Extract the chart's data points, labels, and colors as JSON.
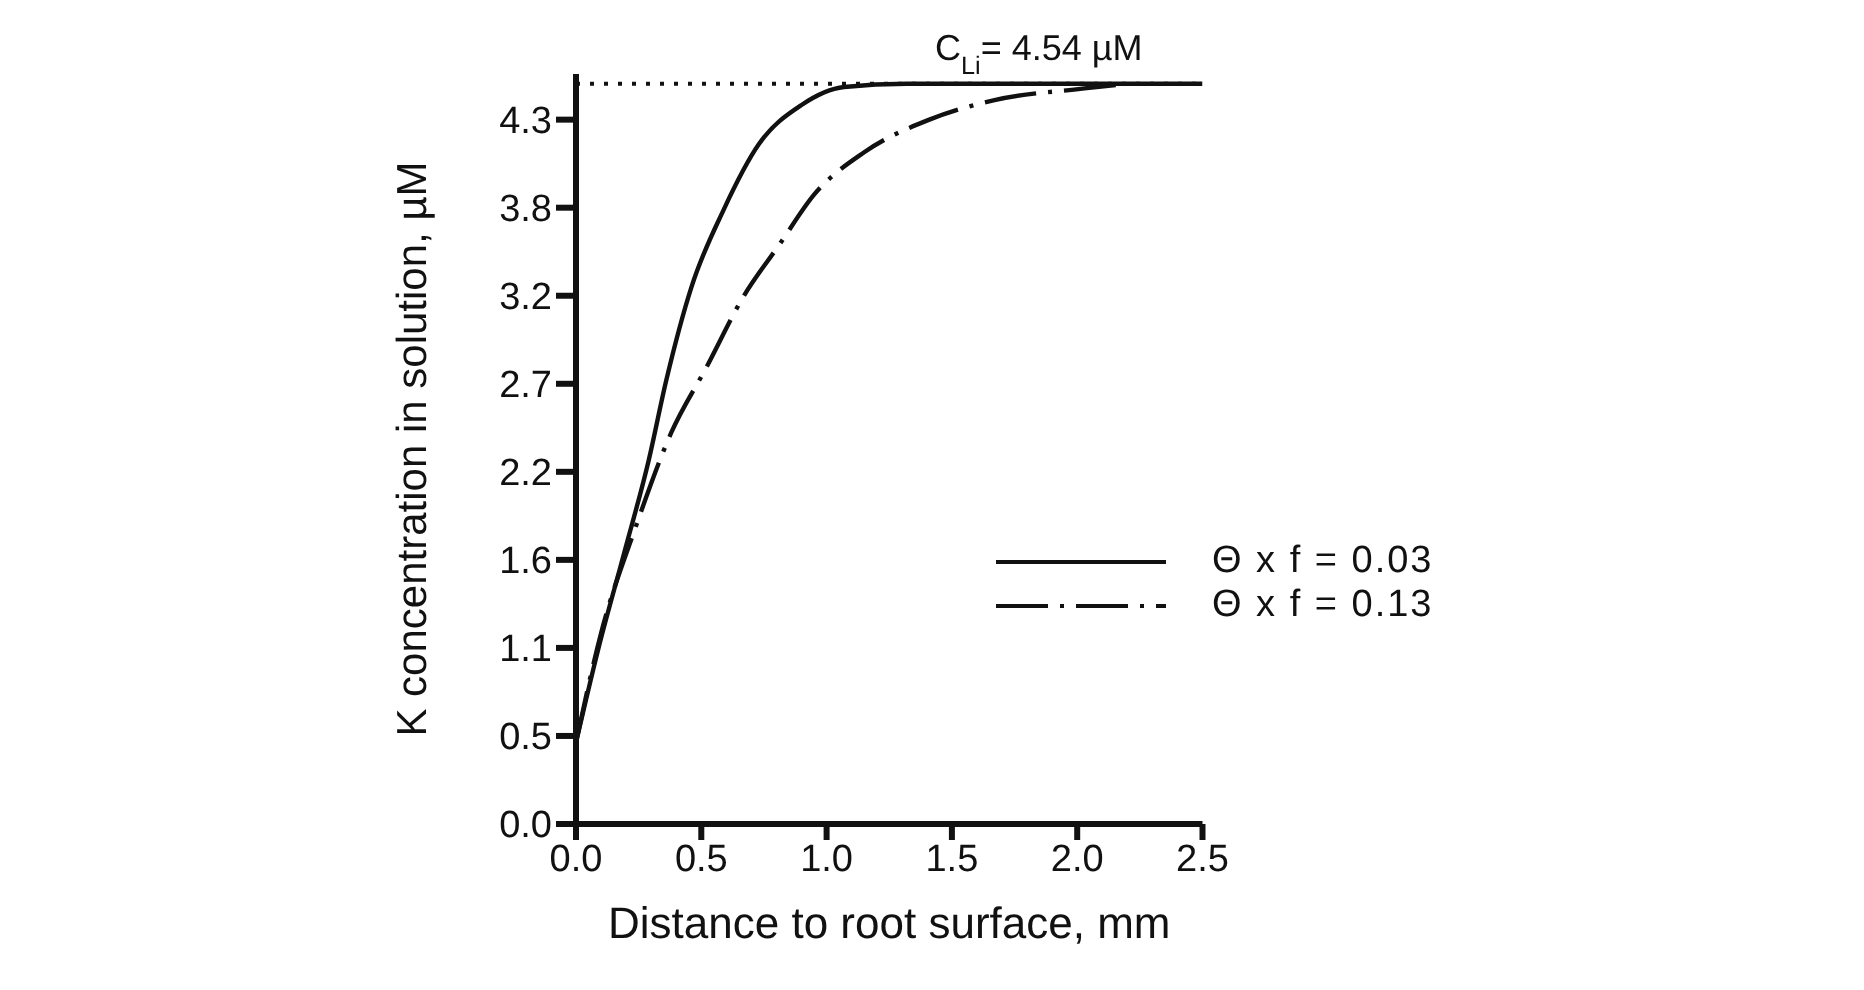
{
  "chart_data": {
    "type": "line",
    "xlabel": "Distance to root surface, mm",
    "ylabel": "K concentration in solution, µM",
    "xlim": [
      0,
      2.5
    ],
    "xticks": [
      "0.0",
      0.5,
      "1.0",
      1.5,
      "2.0",
      2.5
    ],
    "ylim": [
      0,
      4.6
    ],
    "yticks": [
      {
        "value": 0,
        "label": "0.0"
      },
      {
        "value": 0.54,
        "label": "0.5"
      },
      {
        "value": 1.08,
        "label": "1.1"
      },
      {
        "value": 1.62,
        "label": "1.6"
      },
      {
        "value": 2.16,
        "label": "2.2"
      },
      {
        "value": 2.7,
        "label": "2.7"
      },
      {
        "value": 3.24,
        "label": "3.2"
      },
      {
        "value": 3.78,
        "label": "3.8"
      },
      {
        "value": 4.32,
        "label": "4.3"
      }
    ],
    "series": [
      {
        "name": "Θ x f = 0.03",
        "color": "#111111",
        "line_style": "solid",
        "x": [
          0,
          0.09,
          0.19,
          0.29,
          0.36,
          0.46,
          0.59,
          0.73,
          0.9,
          1.07,
          1.32,
          2.5
        ],
        "values": [
          0.5,
          1.08,
          1.65,
          2.23,
          2.72,
          3.29,
          3.77,
          4.17,
          4.41,
          4.52,
          4.54,
          4.54
        ]
      },
      {
        "name": "Θ x f = 0.13",
        "color": "#111111",
        "line_style": "dashdot",
        "x": [
          0,
          0.1,
          0.24,
          0.38,
          0.52,
          0.67,
          0.81,
          0.95,
          1.15,
          1.41,
          1.67,
          2.02,
          2.2
        ],
        "values": [
          0.5,
          1.17,
          1.83,
          2.4,
          2.8,
          3.24,
          3.55,
          3.86,
          4.12,
          4.32,
          4.44,
          4.51,
          4.54
        ]
      }
    ],
    "ref_lines": [
      {
        "axis": "y",
        "value": 4.54,
        "label": "C$_{Li}$= 4.54 µM",
        "line_style": "dotted",
        "color": "#111111"
      }
    ],
    "legend": "right"
  }
}
